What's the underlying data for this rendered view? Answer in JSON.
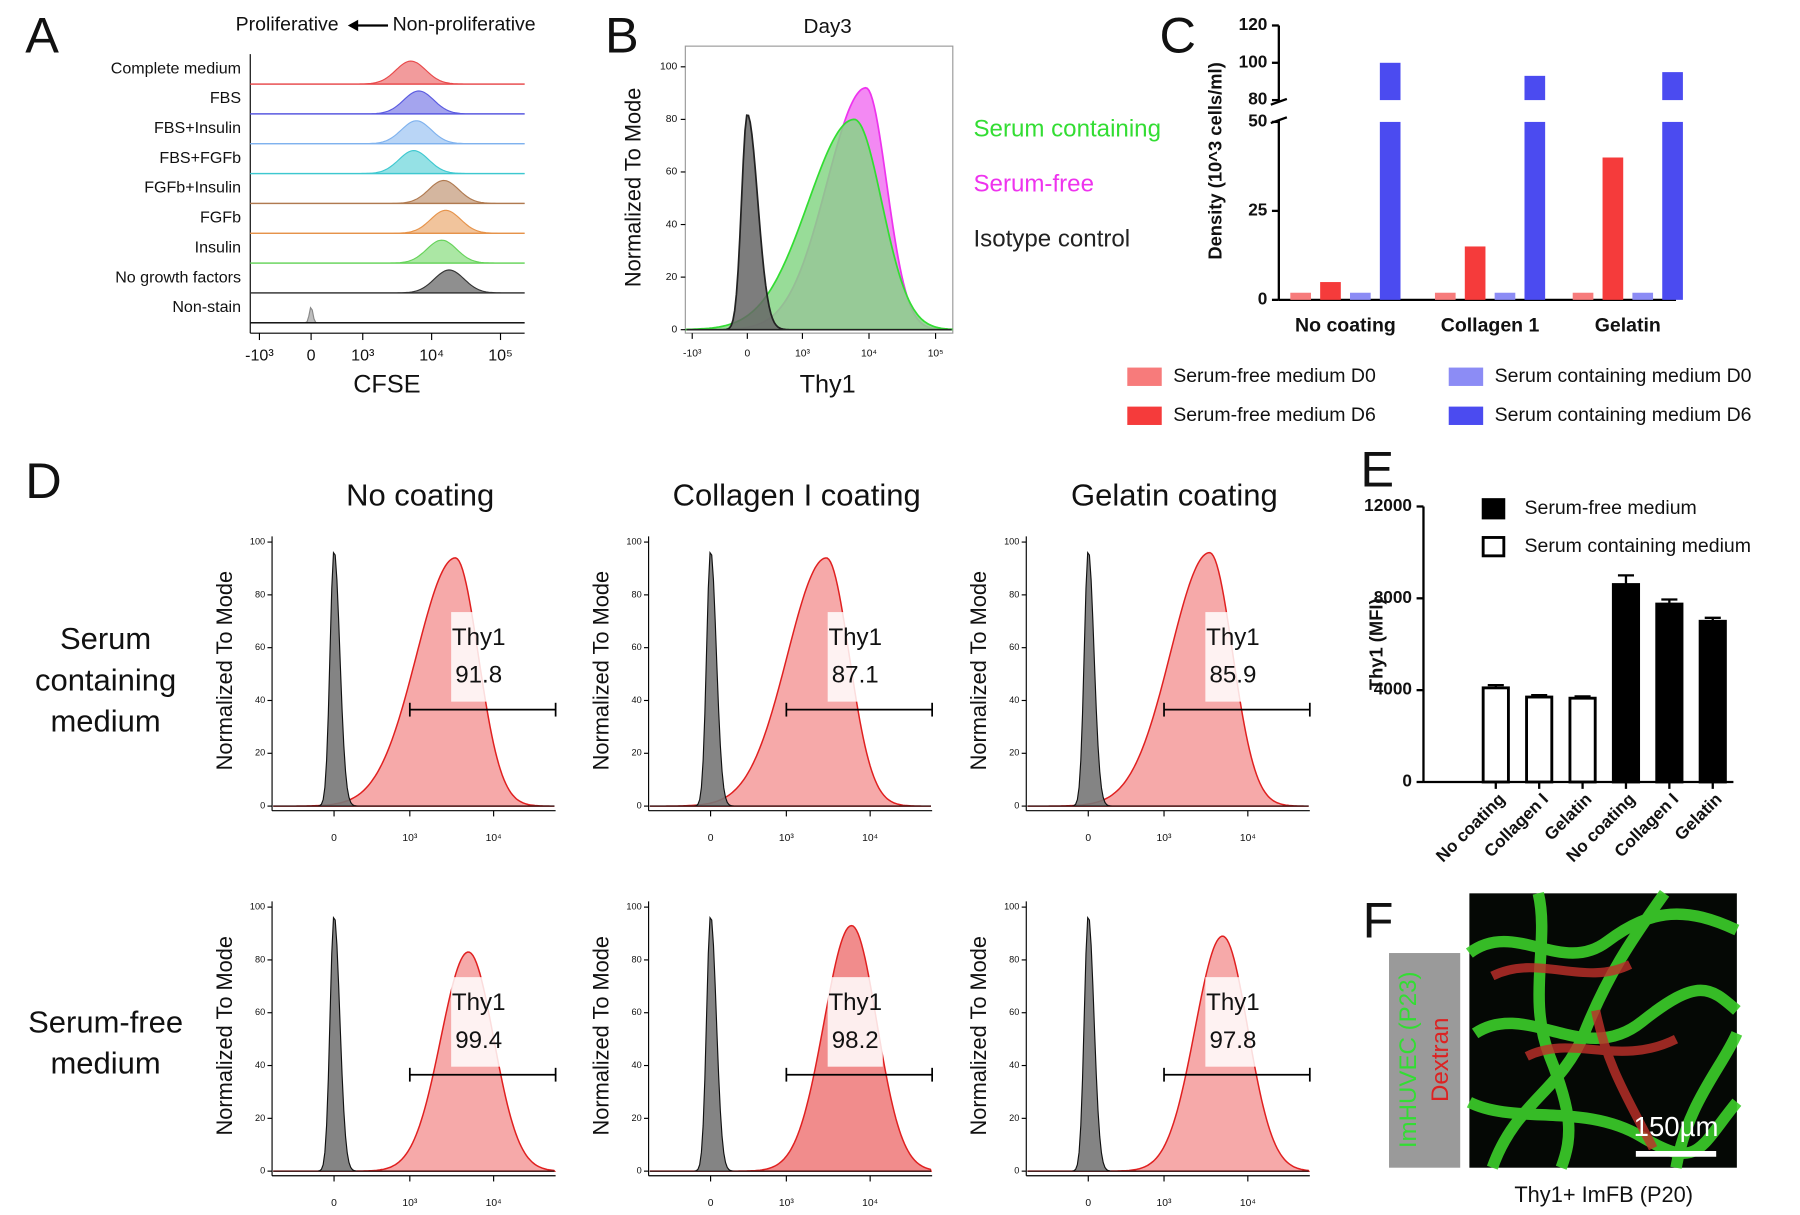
{
  "chart_data": [
    {
      "panel_label": "A",
      "type": "ridgeline",
      "header_left": "Proliferative",
      "header_right": "Non-proliferative",
      "xlabel": "CFSE",
      "categories": [
        "Complete medium",
        "FBS",
        "FBS+Insulin",
        "FBS+FGFb",
        "FGFb+Insulin",
        "FGFb",
        "Insulin",
        "No growth factors",
        "Non-stain"
      ],
      "colors": [
        "#e8494a",
        "#5a5ae0",
        "#7fb2ee",
        "#3ec8d0",
        "#b07a50",
        "#e6934a",
        "#66d35a",
        "#333333",
        "#888888"
      ],
      "modes": [
        5000,
        6500,
        6000,
        5500,
        15000,
        16000,
        14000,
        18000,
        0
      ],
      "xticks": [
        {
          "value": -1000,
          "label": "-10³"
        },
        0,
        {
          "value": 1000,
          "label": "10³"
        },
        {
          "value": 10000,
          "label": "10⁴"
        },
        {
          "value": 100000,
          "label": "10⁵"
        }
      ]
    },
    {
      "panel_label": "B",
      "type": "histogram-overlay",
      "title": "Day3",
      "xlabel": "Thy1",
      "ylabel": "Normalized To Mode",
      "ylim": [
        0,
        100
      ],
      "yticks": [
        0,
        20,
        40,
        60,
        80,
        100
      ],
      "xticks": [
        {
          "value": -1000,
          "label": "-10³"
        },
        0,
        {
          "value": 1000,
          "label": "10³"
        },
        {
          "value": 10000,
          "label": "10⁴"
        },
        {
          "value": 100000,
          "label": "10⁵"
        }
      ],
      "series": [
        {
          "name": "Serum containing",
          "color": "#33dd33",
          "mode": 6000,
          "peak": 80
        },
        {
          "name": "Serum-free",
          "color": "#ee33ee",
          "mode": 9000,
          "peak": 92
        },
        {
          "name": "Isotype control",
          "color": "#222222",
          "mode": 0,
          "peak": 82
        }
      ]
    },
    {
      "panel_label": "C",
      "type": "bar",
      "ylabel": "Density (10^3 cells/ml)",
      "categories": [
        "No coating",
        "Collagen 1",
        "Gelatin"
      ],
      "ylim": [
        0,
        120
      ],
      "axis_break": [
        50,
        80
      ],
      "yticks": [
        0,
        25,
        50,
        80,
        100,
        120
      ],
      "series": [
        {
          "name": "Serum-free medium D0",
          "color": "#f77b7b",
          "values": [
            2,
            2,
            2
          ]
        },
        {
          "name": "Serum-free medium D6",
          "color": "#f53b3b",
          "values": [
            5,
            15,
            40
          ]
        },
        {
          "name": "Serum containing medium D0",
          "color": "#8c8cf5",
          "values": [
            2,
            2,
            2
          ]
        },
        {
          "name": "Serum containing medium D6",
          "color": "#4b4bf0",
          "values": [
            100,
            93,
            95
          ]
        }
      ]
    },
    {
      "panel_label": "D",
      "type": "flow-grid",
      "columns": [
        "No coating",
        "Collagen I coating",
        "Gelatin coating"
      ],
      "rows": [
        [
          "Serum",
          "containing",
          "medium"
        ],
        [
          "Serum-free",
          "medium"
        ]
      ],
      "ylabel": "Normalized To Mode",
      "gate_label": "Thy1",
      "percents": [
        [
          91.8,
          87.1,
          85.9
        ],
        [
          99.4,
          98.2,
          97.8
        ]
      ],
      "sample_modes": [
        [
          3500,
          3000,
          3500
        ],
        [
          5000,
          6000,
          5000
        ]
      ],
      "sample_peaks": [
        [
          94,
          94,
          96
        ],
        [
          83,
          93,
          89
        ]
      ],
      "isotype_mode": 0,
      "isotype_peak": 97,
      "ylim": [
        0,
        100
      ],
      "yticks": [
        0,
        20,
        40,
        60,
        80,
        100
      ],
      "xticks": [
        0,
        {
          "value": 1000,
          "label": "10³"
        },
        {
          "value": 10000,
          "label": "10⁴"
        }
      ]
    },
    {
      "panel_label": "E",
      "type": "bar",
      "ylabel": "Thy1 (MFI)",
      "categories": [
        "No coating",
        "Collagen I",
        "Gelatin",
        "No coating",
        "Collagen I",
        "Gelatin"
      ],
      "ylim": [
        0,
        12000
      ],
      "yticks": [
        0,
        4000,
        8000,
        12000
      ],
      "series": [
        {
          "name": "Serum-free medium",
          "color": "#000000",
          "values": [
            null,
            null,
            null,
            8600,
            7750,
            7000
          ],
          "errors": [
            null,
            null,
            null,
            400,
            200,
            150
          ]
        },
        {
          "name": "Serum containing medium",
          "color": "#ffffff",
          "values": [
            4100,
            3700,
            3650,
            null,
            null,
            null
          ],
          "errors": [
            120,
            80,
            80,
            null,
            null,
            null
          ]
        }
      ]
    },
    {
      "panel_label": "F",
      "type": "image",
      "stain_labels": [
        "ImHUVEC (P23)",
        "Dextran"
      ],
      "stain_colors": [
        "#33dd33",
        "#dd2222"
      ],
      "scale_bar": "150µm",
      "caption": "Thy1+ ImFB (P20)"
    }
  ]
}
